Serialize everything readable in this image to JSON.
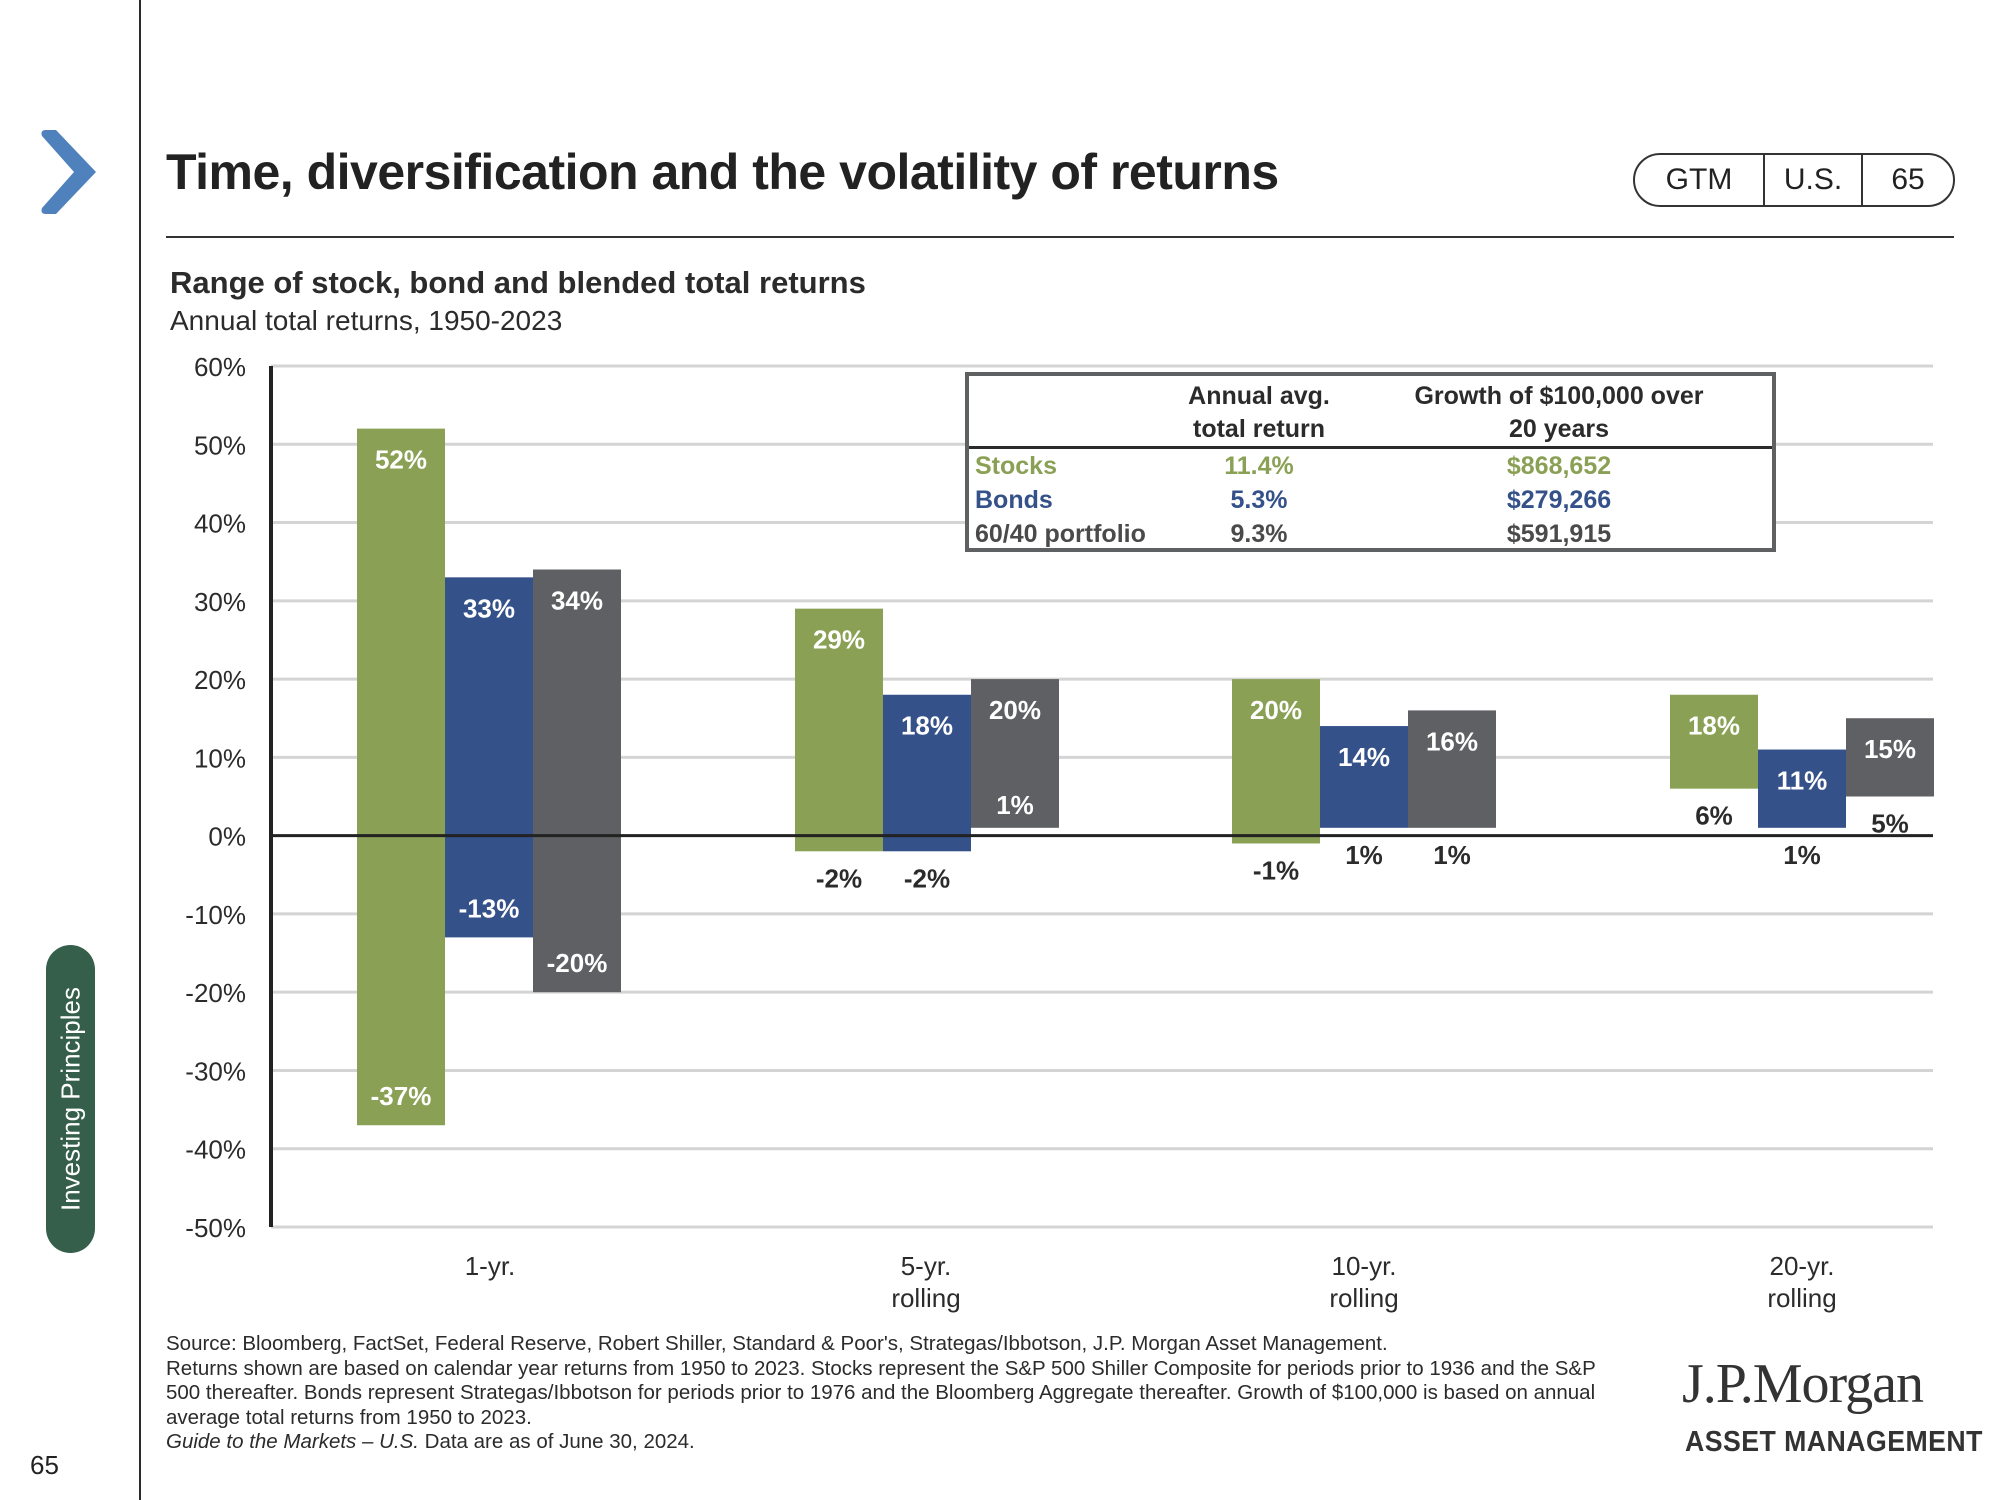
{
  "header": {
    "title": "Time, diversification and the volatility of returns",
    "pill": [
      "GTM",
      "U.S.",
      "65"
    ]
  },
  "sidebar": {
    "section_tag": "Investing Principles",
    "page_number": "65"
  },
  "colors": {
    "stocks": "#8aa155",
    "bonds": "#355189",
    "blend": "#5e6063",
    "chevron": "#4f81bd",
    "section_tag": "#355f4a"
  },
  "chart_data": {
    "type": "bar",
    "subtype": "floating-range",
    "title": "Range of stock, bond and blended total returns",
    "subtitle": "Annual total returns, 1950-2023",
    "xlabel": "",
    "ylabel": "",
    "ylim": [
      -50,
      60
    ],
    "ytick_step": 10,
    "yticks": [
      "60%",
      "50%",
      "40%",
      "30%",
      "20%",
      "10%",
      "0%",
      "-10%",
      "-20%",
      "-30%",
      "-40%",
      "-50%"
    ],
    "grid": true,
    "categories": [
      [
        "1-yr."
      ],
      [
        "5-yr.",
        "rolling"
      ],
      [
        "10-yr.",
        "rolling"
      ],
      [
        "20-yr.",
        "rolling"
      ]
    ],
    "series": [
      {
        "name": "Stocks",
        "color_key": "stocks",
        "high": [
          52,
          29,
          20,
          18
        ],
        "low": [
          -37,
          -2,
          -1,
          6
        ]
      },
      {
        "name": "Bonds",
        "color_key": "bonds",
        "high": [
          33,
          18,
          14,
          11
        ],
        "low": [
          -13,
          -2,
          1,
          1
        ]
      },
      {
        "name": "60/40 portfolio",
        "color_key": "blend",
        "high": [
          34,
          20,
          16,
          15
        ],
        "low": [
          -20,
          1,
          1,
          5
        ]
      }
    ]
  },
  "stats_table": {
    "headers": [
      "",
      "Annual avg.\ntotal return",
      "Growth of $100,000 over\n20 years"
    ],
    "header_lines": [
      [
        "Annual avg.",
        "total return"
      ],
      [
        "Growth of $100,000 over",
        "20 years"
      ]
    ],
    "rows": [
      {
        "label": "Stocks",
        "avg_return": "11.4%",
        "growth": "$868,652",
        "color_key": "stocks"
      },
      {
        "label": "Bonds",
        "avg_return": "5.3%",
        "growth": "$279,266",
        "color_key": "bonds"
      },
      {
        "label": "60/40 portfolio",
        "avg_return": "9.3%",
        "growth": "$591,915",
        "color_key": "blend"
      }
    ]
  },
  "footnote": {
    "lines": [
      "Source: Bloomberg, FactSet, Federal Reserve, Robert Shiller, Standard & Poor's, Strategas/Ibbotson, J.P. Morgan Asset Management.",
      "Returns shown are based on calendar year returns from 1950 to 2023. Stocks represent the S&P 500 Shiller Composite for periods prior to 1936 and the S&P 500 thereafter. Bonds represent Strategas/Ibbotson for periods prior to 1976 and the Bloomberg Aggregate thereafter. Growth of $100,000 is based on annual average total returns from 1950 to 2023."
    ],
    "italic_part": "Guide to the Markets – U.S.",
    "date_part": " Data are as of June 30, 2024."
  },
  "logo": {
    "main": "J.P.Morgan",
    "sub": "ASSET MANAGEMENT"
  }
}
